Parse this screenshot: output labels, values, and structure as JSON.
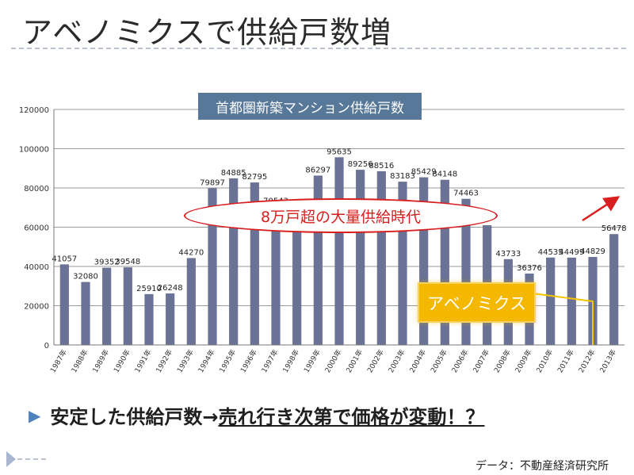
{
  "slide": {
    "title": "アベノミクスで供給戸数増",
    "bottom_prefix": "安定した供給戸数→",
    "bottom_emphasis": "売れ行き次第で価格が変動！？",
    "source": "データ：不動産経済研究所"
  },
  "callouts": {
    "era": "8万戸超の大量供給時代",
    "abenomics": "アベノミクス"
  },
  "colors": {
    "bar": "#6a7395",
    "grid": "#9a9a9a",
    "ellipse": "#d81e1e",
    "trend_arrow": "#d81e1e",
    "abenomics_box": "#f5b800"
  },
  "chart_data": {
    "type": "bar",
    "title": "首都圏新築マンション供給戸数",
    "categories": [
      "1987年",
      "1988年",
      "1989年",
      "1990年",
      "1991年",
      "1992年",
      "1993年",
      "1994年",
      "1995年",
      "1996年",
      "1997年",
      "1998年",
      "1999年",
      "2000年",
      "2001年",
      "2002年",
      "2003年",
      "2004年",
      "2005年",
      "2006年",
      "2007年",
      "2008年",
      "2009年",
      "2010年",
      "2011年",
      "2012年",
      "2013年"
    ],
    "values": [
      41057,
      32080,
      39352,
      39548,
      25910,
      26248,
      44270,
      79897,
      84885,
      82795,
      70543,
      63000,
      86297,
      95635,
      89256,
      88516,
      83183,
      85429,
      84148,
      74463,
      61000,
      43733,
      36376,
      44535,
      44499,
      44829,
      56478
    ],
    "data_labels": [
      "41057",
      "32080",
      "39352",
      "39548",
      "25910",
      "26248",
      "44270",
      "79897",
      "84885",
      "82795",
      "70543",
      "",
      "86297",
      "95635",
      "89256",
      "88516",
      "83183",
      "85429",
      "84148",
      "74463",
      "",
      "43733",
      "36376",
      "44535",
      "44499",
      "44829",
      "56478"
    ],
    "ylim": [
      0,
      120000
    ],
    "yticks": [
      0,
      20000,
      40000,
      60000,
      80000,
      100000,
      120000
    ],
    "xlabel": "",
    "ylabel": "",
    "grid": true
  }
}
